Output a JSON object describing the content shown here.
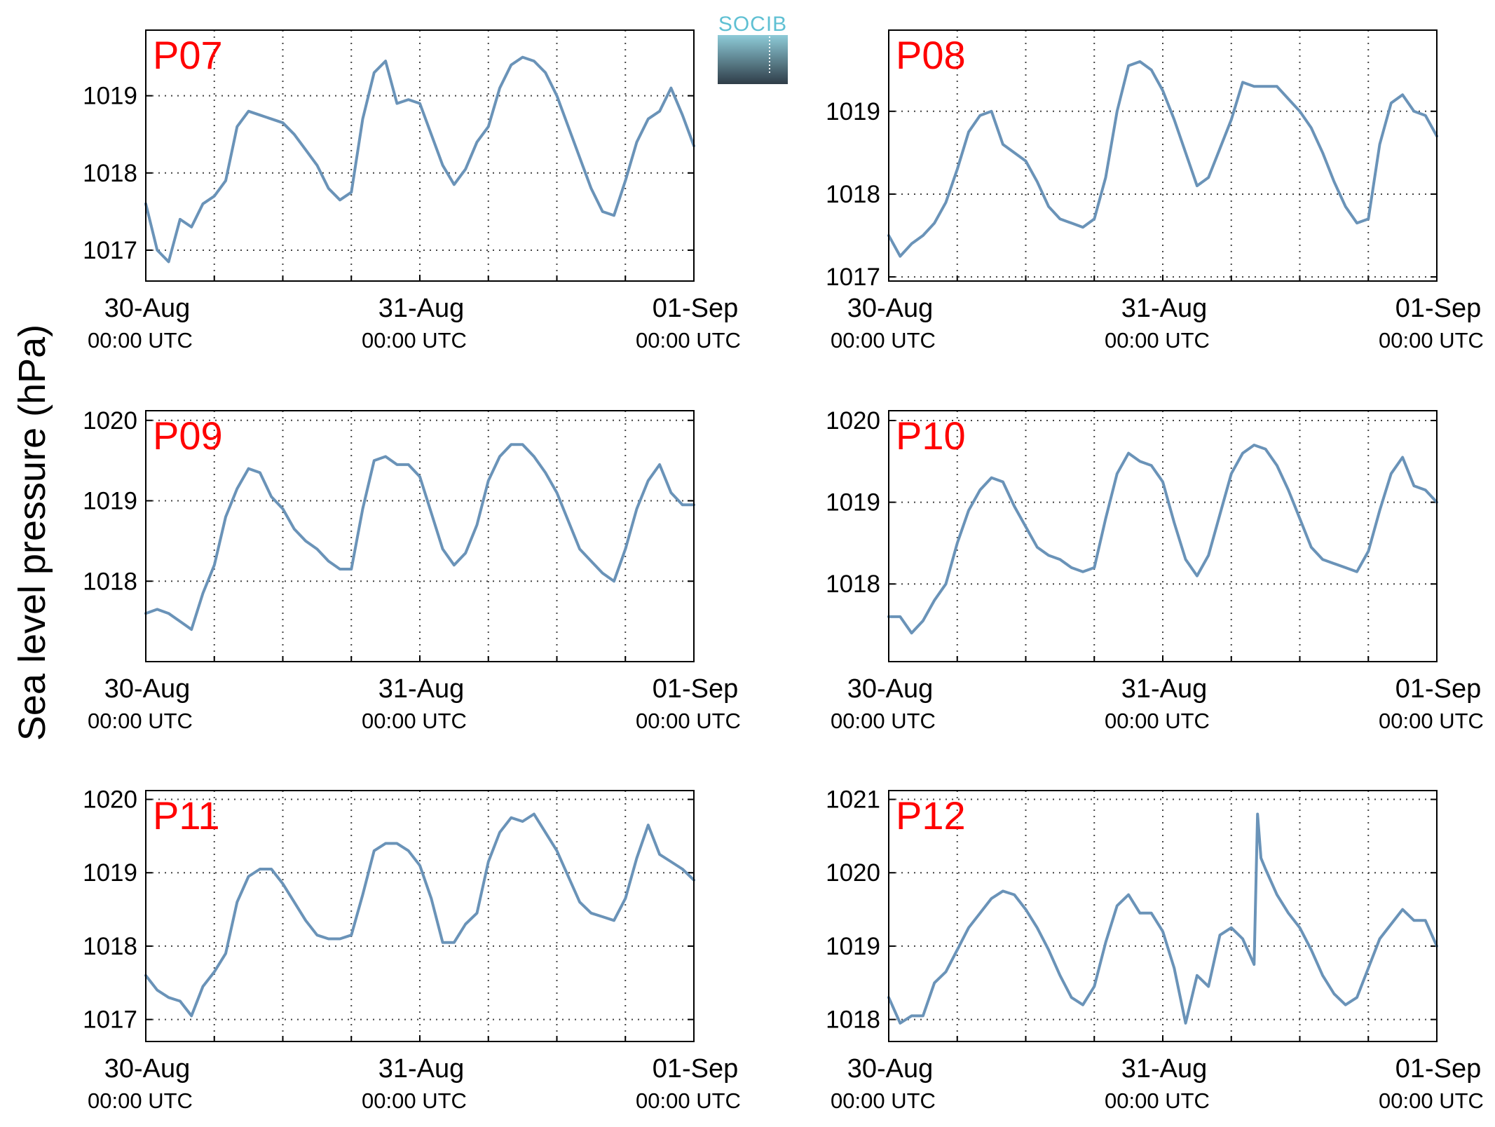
{
  "figure": {
    "ylabel": "Sea level pressure (hPa)",
    "logo_text": "SOCIB"
  },
  "chart_data": [
    {
      "type": "line",
      "title": "P07",
      "xlim_hours": [
        0,
        48
      ],
      "ylim": [
        1016.6,
        1019.85
      ],
      "yticks": [
        1017,
        1018,
        1019
      ],
      "x_hours": [
        0,
        1,
        2,
        3,
        4,
        5,
        6,
        7,
        8,
        9,
        10,
        11,
        12,
        13,
        14,
        15,
        16,
        17,
        18,
        19,
        20,
        21,
        22,
        23,
        24,
        25,
        26,
        27,
        28,
        29,
        30,
        31,
        32,
        33,
        34,
        35,
        36,
        37,
        38,
        39,
        40,
        41,
        42,
        43,
        44,
        45,
        46,
        47,
        48
      ],
      "values": [
        1017.6,
        1017.0,
        1016.85,
        1017.4,
        1017.3,
        1017.6,
        1017.7,
        1017.9,
        1018.6,
        1018.8,
        1018.75,
        1018.7,
        1018.65,
        1018.5,
        1018.3,
        1018.1,
        1017.8,
        1017.65,
        1017.75,
        1018.7,
        1019.3,
        1019.45,
        1018.9,
        1018.95,
        1018.9,
        1018.5,
        1018.1,
        1017.85,
        1018.05,
        1018.4,
        1018.6,
        1019.1,
        1019.4,
        1019.5,
        1019.45,
        1019.3,
        1019.0,
        1018.6,
        1018.2,
        1017.8,
        1017.5,
        1017.45,
        1017.9,
        1018.4,
        1018.7,
        1018.8,
        1019.1,
        1018.75,
        1018.35
      ]
    },
    {
      "type": "line",
      "title": "P08",
      "xlim_hours": [
        0,
        48
      ],
      "ylim": [
        1016.95,
        1019.98
      ],
      "yticks": [
        1017,
        1018,
        1019
      ],
      "x_hours": [
        0,
        1,
        2,
        3,
        4,
        5,
        6,
        7,
        8,
        9,
        10,
        11,
        12,
        13,
        14,
        15,
        16,
        17,
        18,
        19,
        20,
        21,
        22,
        23,
        24,
        25,
        26,
        27,
        28,
        29,
        30,
        31,
        32,
        33,
        34,
        35,
        36,
        37,
        38,
        39,
        40,
        41,
        42,
        43,
        44,
        45,
        46,
        47,
        48
      ],
      "values": [
        1017.5,
        1017.25,
        1017.4,
        1017.5,
        1017.65,
        1017.9,
        1018.3,
        1018.75,
        1018.95,
        1019.0,
        1018.6,
        1018.5,
        1018.4,
        1018.15,
        1017.85,
        1017.7,
        1017.65,
        1017.6,
        1017.7,
        1018.2,
        1019.0,
        1019.55,
        1019.6,
        1019.5,
        1019.25,
        1018.9,
        1018.5,
        1018.1,
        1018.2,
        1018.55,
        1018.9,
        1019.35,
        1019.3,
        1019.3,
        1019.3,
        1019.15,
        1019.0,
        1018.8,
        1018.5,
        1018.15,
        1017.85,
        1017.65,
        1017.7,
        1018.6,
        1019.1,
        1019.2,
        1019.0,
        1018.95,
        1018.7
      ]
    },
    {
      "type": "line",
      "title": "P09",
      "xlim_hours": [
        0,
        48
      ],
      "ylim": [
        1017.0,
        1020.12
      ],
      "yticks": [
        1018,
        1019,
        1020
      ],
      "x_hours": [
        0,
        1,
        2,
        3,
        4,
        5,
        6,
        7,
        8,
        9,
        10,
        11,
        12,
        13,
        14,
        15,
        16,
        17,
        18,
        19,
        20,
        21,
        22,
        23,
        24,
        25,
        26,
        27,
        28,
        29,
        30,
        31,
        32,
        33,
        34,
        35,
        36,
        37,
        38,
        39,
        40,
        41,
        42,
        43,
        44,
        45,
        46,
        47,
        48
      ],
      "values": [
        1017.6,
        1017.65,
        1017.6,
        1017.5,
        1017.4,
        1017.85,
        1018.2,
        1018.8,
        1019.15,
        1019.4,
        1019.35,
        1019.05,
        1018.9,
        1018.65,
        1018.5,
        1018.4,
        1018.25,
        1018.15,
        1018.15,
        1018.9,
        1019.5,
        1019.55,
        1019.45,
        1019.45,
        1019.3,
        1018.85,
        1018.4,
        1018.2,
        1018.35,
        1018.7,
        1019.25,
        1019.55,
        1019.7,
        1019.7,
        1019.55,
        1019.35,
        1019.1,
        1018.75,
        1018.4,
        1018.25,
        1018.1,
        1018.0,
        1018.4,
        1018.9,
        1019.25,
        1019.45,
        1019.1,
        1018.95,
        1018.95
      ]
    },
    {
      "type": "line",
      "title": "P10",
      "xlim_hours": [
        0,
        48
      ],
      "ylim": [
        1017.05,
        1020.12
      ],
      "yticks": [
        1018,
        1019,
        1020
      ],
      "x_hours": [
        0,
        1,
        2,
        3,
        4,
        5,
        6,
        7,
        8,
        9,
        10,
        11,
        12,
        13,
        14,
        15,
        16,
        17,
        18,
        19,
        20,
        21,
        22,
        23,
        24,
        25,
        26,
        27,
        28,
        29,
        30,
        31,
        32,
        33,
        34,
        35,
        36,
        37,
        38,
        39,
        40,
        41,
        42,
        43,
        44,
        45,
        46,
        47,
        48
      ],
      "values": [
        1017.6,
        1017.6,
        1017.4,
        1017.55,
        1017.8,
        1018.0,
        1018.5,
        1018.9,
        1019.15,
        1019.3,
        1019.25,
        1018.95,
        1018.7,
        1018.45,
        1018.35,
        1018.3,
        1018.2,
        1018.15,
        1018.2,
        1018.8,
        1019.35,
        1019.6,
        1019.5,
        1019.45,
        1019.25,
        1018.75,
        1018.3,
        1018.1,
        1018.35,
        1018.85,
        1019.35,
        1019.6,
        1019.7,
        1019.65,
        1019.45,
        1019.15,
        1018.8,
        1018.45,
        1018.3,
        1018.25,
        1018.2,
        1018.15,
        1018.4,
        1018.9,
        1019.35,
        1019.55,
        1019.2,
        1019.15,
        1019.0
      ]
    },
    {
      "type": "line",
      "title": "P11",
      "xlim_hours": [
        0,
        48
      ],
      "ylim": [
        1016.7,
        1020.12
      ],
      "yticks": [
        1017,
        1018,
        1019,
        1020
      ],
      "x_hours": [
        0,
        1,
        2,
        3,
        4,
        5,
        6,
        7,
        8,
        9,
        10,
        11,
        12,
        13,
        14,
        15,
        16,
        17,
        18,
        19,
        20,
        21,
        22,
        23,
        24,
        25,
        26,
        27,
        28,
        29,
        30,
        31,
        32,
        33,
        34,
        35,
        36,
        37,
        38,
        39,
        40,
        41,
        42,
        43,
        44,
        45,
        46,
        47,
        48
      ],
      "values": [
        1017.6,
        1017.4,
        1017.3,
        1017.25,
        1017.05,
        1017.45,
        1017.65,
        1017.9,
        1018.6,
        1018.95,
        1019.05,
        1019.05,
        1018.85,
        1018.6,
        1018.35,
        1018.15,
        1018.1,
        1018.1,
        1018.15,
        1018.7,
        1019.3,
        1019.4,
        1019.4,
        1019.3,
        1019.1,
        1018.65,
        1018.05,
        1018.05,
        1018.3,
        1018.45,
        1019.15,
        1019.55,
        1019.75,
        1019.7,
        1019.8,
        1019.55,
        1019.3,
        1018.95,
        1018.6,
        1018.45,
        1018.4,
        1018.35,
        1018.65,
        1019.2,
        1019.65,
        1019.25,
        1019.15,
        1019.05,
        1018.9
      ]
    },
    {
      "type": "line",
      "title": "P12",
      "xlim_hours": [
        0,
        48
      ],
      "ylim": [
        1017.7,
        1021.12
      ],
      "yticks": [
        1018,
        1019,
        1020,
        1021
      ],
      "x_hours": [
        0,
        1,
        2,
        3,
        4,
        5,
        6,
        7,
        8,
        9,
        10,
        11,
        12,
        13,
        14,
        15,
        16,
        17,
        18,
        19,
        20,
        21,
        22,
        23,
        24,
        25,
        26,
        27,
        28,
        29,
        30,
        31,
        32,
        32.3,
        32.6,
        33,
        34,
        35,
        36,
        37,
        38,
        39,
        40,
        41,
        42,
        43,
        44,
        45,
        46,
        47,
        48
      ],
      "values": [
        1018.3,
        1017.95,
        1018.05,
        1018.05,
        1018.5,
        1018.65,
        1018.95,
        1019.25,
        1019.45,
        1019.65,
        1019.75,
        1019.7,
        1019.5,
        1019.25,
        1018.95,
        1018.6,
        1018.3,
        1018.2,
        1018.45,
        1019.05,
        1019.55,
        1019.7,
        1019.45,
        1019.45,
        1019.2,
        1018.7,
        1017.95,
        1018.6,
        1018.45,
        1019.15,
        1019.25,
        1019.1,
        1018.75,
        1020.8,
        1020.2,
        1020.05,
        1019.7,
        1019.45,
        1019.25,
        1018.95,
        1018.6,
        1018.35,
        1018.2,
        1018.3,
        1018.7,
        1019.1,
        1019.3,
        1019.5,
        1019.35,
        1019.35,
        1019.0
      ]
    }
  ],
  "x_ticks": [
    {
      "hour": 0,
      "label": "30-Aug",
      "sublabel": "00:00 UTC"
    },
    {
      "hour": 24,
      "label": "31-Aug",
      "sublabel": "00:00 UTC"
    },
    {
      "hour": 48,
      "label": "01-Sep",
      "sublabel": "00:00 UTC"
    }
  ],
  "style": {
    "line_color": "#6a93b8",
    "title_color": "#ff0000",
    "grid_color": "#444444",
    "logo_text_color": "#5fc0d3",
    "logo_top_color": "#8ecbd8",
    "logo_bottom_color": "#2f3d48"
  }
}
